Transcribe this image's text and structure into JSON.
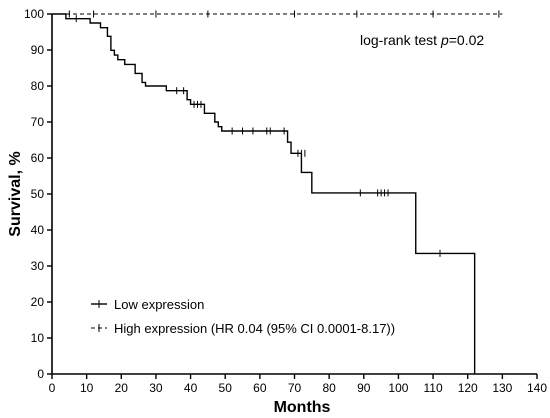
{
  "chart_data": {
    "type": "line",
    "subtype": "kaplan-meier",
    "xlabel": "Months",
    "ylabel": "Survival, %",
    "xlim": [
      0,
      140
    ],
    "ylim": [
      0,
      100
    ],
    "xticks": [
      0,
      10,
      20,
      30,
      40,
      50,
      60,
      70,
      80,
      90,
      100,
      110,
      120,
      130,
      140
    ],
    "yticks": [
      0,
      10,
      20,
      30,
      40,
      50,
      60,
      70,
      80,
      90,
      100
    ],
    "grid": false,
    "legend_position": "bottom-left",
    "annotation": {
      "prefix": "log-rank test ",
      "italic": "p",
      "suffix": "=0.02"
    },
    "series": [
      {
        "name": "Low expression",
        "style": "solid",
        "steps": [
          [
            0,
            100
          ],
          [
            4,
            98.7
          ],
          [
            11,
            97.5
          ],
          [
            14,
            96.2
          ],
          [
            16,
            93.8
          ],
          [
            17,
            89.9
          ],
          [
            18,
            88.6
          ],
          [
            19,
            87.3
          ],
          [
            21,
            86
          ],
          [
            24,
            83.5
          ],
          [
            26,
            81
          ],
          [
            27,
            80
          ],
          [
            33,
            78.7
          ],
          [
            39,
            76.2
          ],
          [
            40,
            74.9
          ],
          [
            44,
            72.4
          ],
          [
            47,
            70
          ],
          [
            48,
            68.7
          ],
          [
            49,
            67.5
          ],
          [
            68,
            64.4
          ],
          [
            69,
            61.3
          ],
          [
            72,
            56
          ],
          [
            75,
            50.3
          ],
          [
            105,
            33.5
          ],
          [
            122,
            0
          ]
        ],
        "end_x": 122,
        "censored": [
          [
            7,
            98.7
          ],
          [
            36,
            78.7
          ],
          [
            38,
            78.7
          ],
          [
            41,
            74.9
          ],
          [
            42,
            74.9
          ],
          [
            43,
            74.9
          ],
          [
            52,
            67.5
          ],
          [
            55,
            67.5
          ],
          [
            58,
            67.5
          ],
          [
            62,
            67.5
          ],
          [
            63,
            67.5
          ],
          [
            67,
            67.5
          ],
          [
            71,
            61.3
          ],
          [
            72,
            61.3
          ],
          [
            73,
            61.3
          ],
          [
            89,
            50.3
          ],
          [
            94,
            50.3
          ],
          [
            95,
            50.3
          ],
          [
            96,
            50.3
          ],
          [
            97,
            50.3
          ],
          [
            112,
            33.5
          ]
        ]
      },
      {
        "name": "High expression (HR 0.04 (95% CI 0.0001-8.17))",
        "style": "dashed",
        "steps": [
          [
            0,
            100
          ],
          [
            130,
            100
          ]
        ],
        "end_x": 130,
        "censored": [
          [
            5,
            100
          ],
          [
            12,
            100
          ],
          [
            30,
            100
          ],
          [
            45,
            100
          ],
          [
            70,
            100
          ],
          [
            88,
            100
          ],
          [
            110,
            100
          ],
          [
            129,
            100
          ]
        ]
      }
    ]
  }
}
